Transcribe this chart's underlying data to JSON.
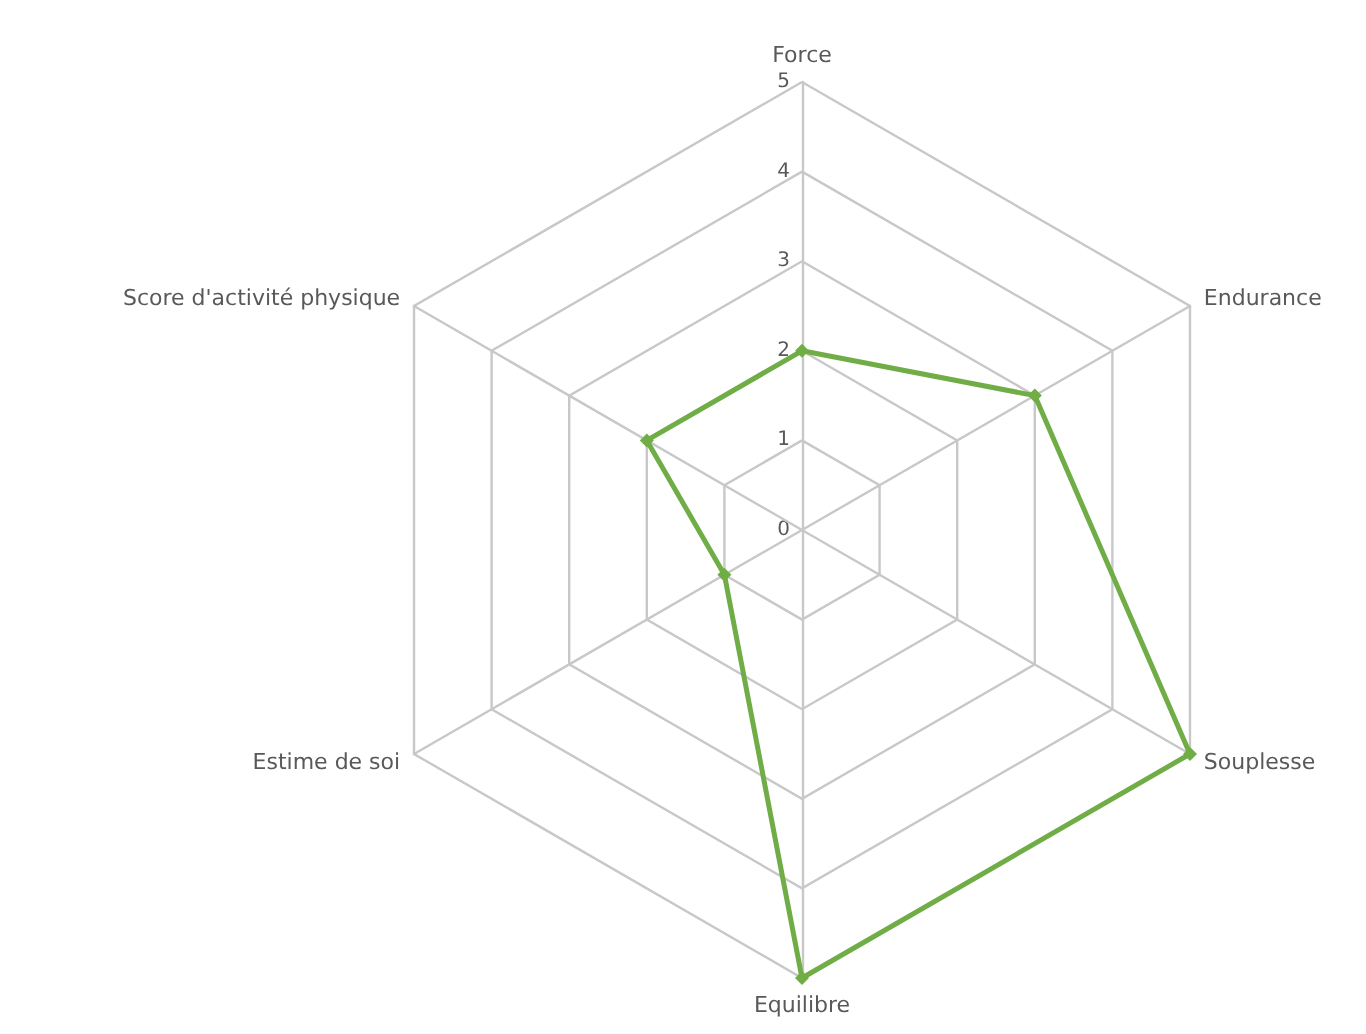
{
  "chart_data": {
    "type": "radar",
    "categories": [
      "Force",
      "Endurance",
      "Souplesse",
      "Equilibre",
      "Estime de soi",
      "Score d'activité physique"
    ],
    "series": [
      {
        "color": "#70ad47",
        "values": [
          2,
          3,
          5,
          5,
          1,
          2
        ]
      }
    ],
    "ylim": [
      0,
      5
    ],
    "yticks": [
      0,
      1,
      2,
      3,
      4,
      5
    ],
    "grid": true,
    "marker": "diamond",
    "line_style": "solid"
  }
}
